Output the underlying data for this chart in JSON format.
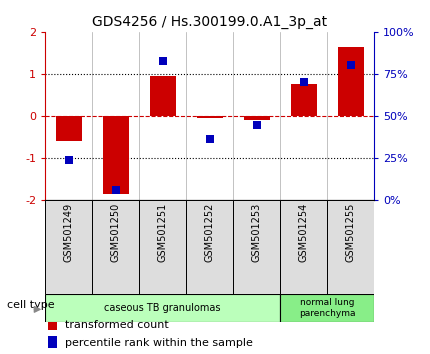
{
  "title": "GDS4256 / Hs.300199.0.A1_3p_at",
  "samples": [
    "GSM501249",
    "GSM501250",
    "GSM501251",
    "GSM501252",
    "GSM501253",
    "GSM501254",
    "GSM501255"
  ],
  "red_values": [
    -0.6,
    -1.85,
    0.95,
    -0.05,
    -0.1,
    0.75,
    1.65
  ],
  "blue_values": [
    -1.05,
    -1.75,
    1.3,
    -0.55,
    -0.22,
    0.8,
    1.2
  ],
  "ylim": [
    -2,
    2
  ],
  "yticks_left": [
    -2,
    -1,
    0,
    1,
    2
  ],
  "ytick_labels_right": [
    "0%",
    "25%",
    "50%",
    "75%",
    "100%"
  ],
  "hlines_dotted": [
    -1,
    1
  ],
  "hline_dashed_red": 0,
  "hline_dotted_zero": 0,
  "red_color": "#CC0000",
  "blue_color": "#0000BB",
  "bar_width": 0.55,
  "blue_marker_size": 6,
  "title_fontsize": 10,
  "tick_fontsize": 8,
  "label_fontsize": 8,
  "legend_fontsize": 8,
  "sample_label_fontsize": 7,
  "cell_type_label": "cell type",
  "group1_label": "caseous TB granulomas",
  "group1_samples": [
    0,
    1,
    2,
    3,
    4
  ],
  "group1_color": "#BBFFBB",
  "group2_label": "normal lung\nparenchyma",
  "group2_samples": [
    5,
    6
  ],
  "group2_color": "#88EE88",
  "legend_items": [
    {
      "color": "#CC0000",
      "label": "transformed count"
    },
    {
      "color": "#0000BB",
      "label": "percentile rank within the sample"
    }
  ]
}
